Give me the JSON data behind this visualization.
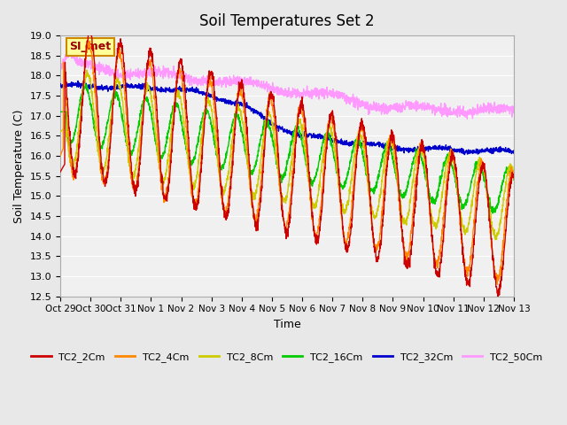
{
  "title": "Soil Temperatures Set 2",
  "xlabel": "Time",
  "ylabel": "Soil Temperature (C)",
  "ylim": [
    12.5,
    19.0
  ],
  "yticks": [
    12.5,
    13.0,
    13.5,
    14.0,
    14.5,
    15.0,
    15.5,
    16.0,
    16.5,
    17.0,
    17.5,
    18.0,
    18.5,
    19.0
  ],
  "series_colors": {
    "TC2_2Cm": "#cc0000",
    "TC2_4Cm": "#ff8800",
    "TC2_8Cm": "#cccc00",
    "TC2_16Cm": "#00cc00",
    "TC2_32Cm": "#0000cc",
    "TC2_50Cm": "#ff99ff"
  },
  "legend_label": "SI_met",
  "legend_bg": "#ffff99",
  "legend_border": "#cc8800",
  "background_color": "#e8e8e8",
  "plot_bg": "#f0f0f0",
  "grid_color": "#ffffff",
  "n_days": 15,
  "tick_labels": [
    "Oct 29",
    "Oct 30",
    "Oct 31",
    "Nov 1",
    "Nov 2",
    "Nov 3",
    "Nov 4",
    "Nov 5",
    "Nov 6",
    "Nov 7",
    "Nov 8",
    "Nov 9",
    "Nov 10",
    "Nov 11",
    "Nov 12",
    "Nov 13"
  ]
}
